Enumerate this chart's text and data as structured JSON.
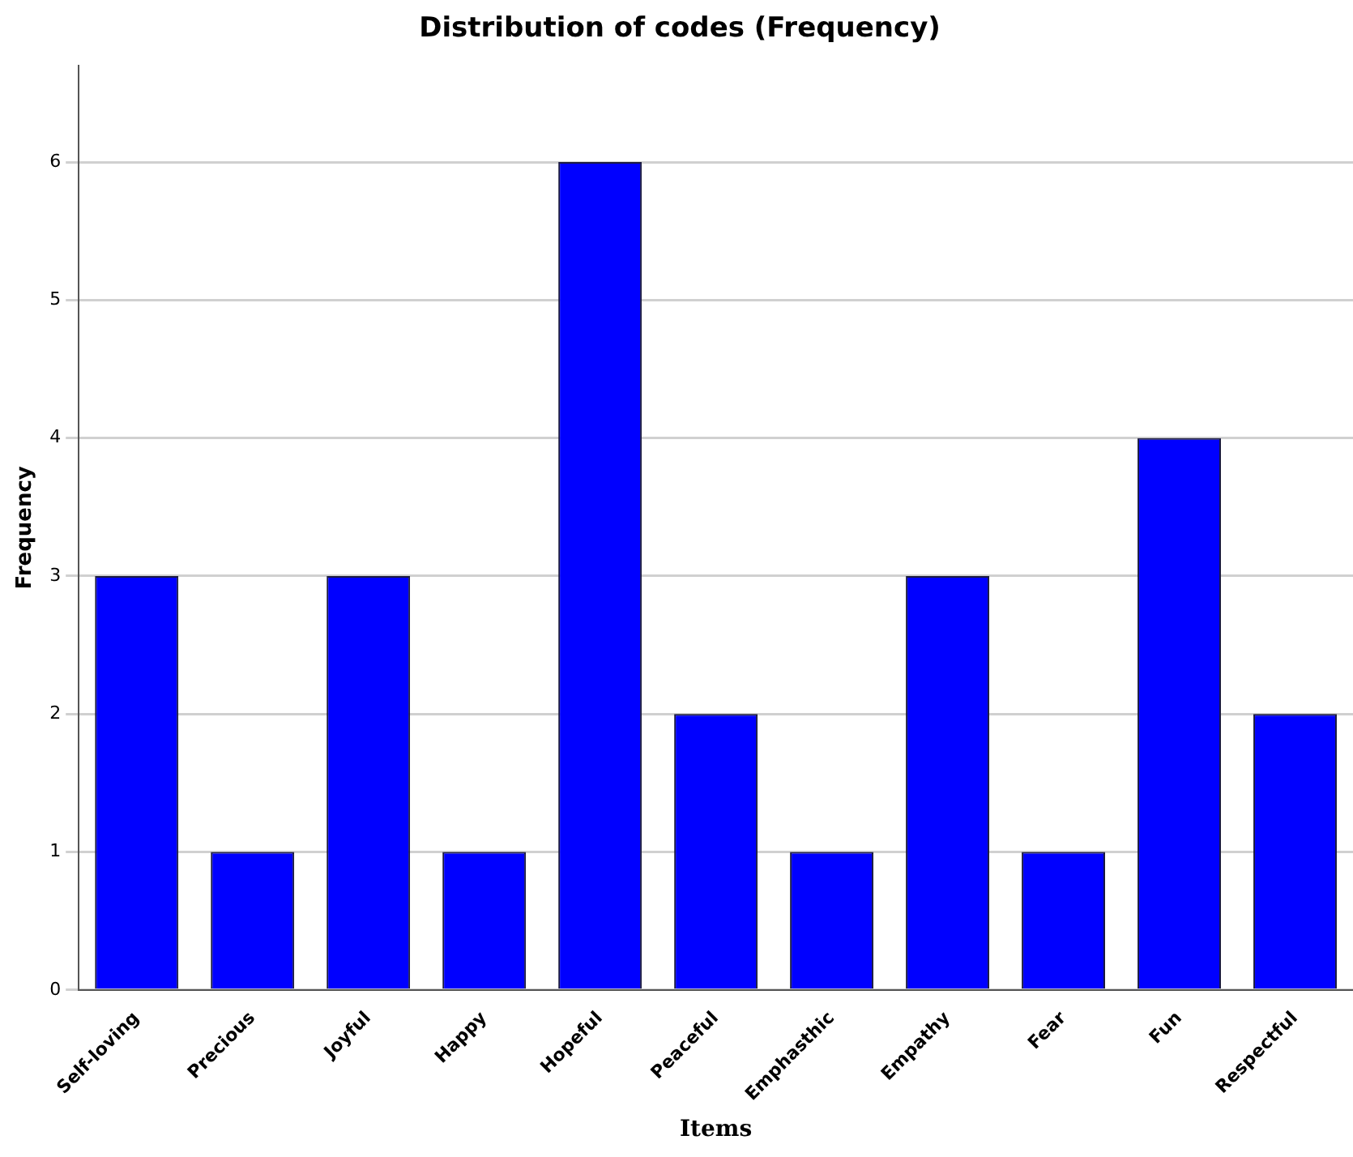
{
  "chart_data": {
    "type": "bar",
    "title": "Distribution of codes (Frequency)",
    "xlabel": "Items",
    "ylabel": "Frequency",
    "categories": [
      "Self-loving",
      "Precious",
      "Joyful",
      "Happy",
      "Hopeful",
      "Peaceful",
      "Emphasthic",
      "Empathy",
      "Fear",
      "Fun",
      "Respectful"
    ],
    "values": [
      3,
      1,
      3,
      1,
      6,
      2,
      1,
      3,
      1,
      4,
      2
    ],
    "color": "#0000ff",
    "ylim": [
      0,
      6.7
    ],
    "yticks": [
      0,
      1,
      2,
      3,
      4,
      5,
      6
    ],
    "grid": "y",
    "legend": false
  }
}
